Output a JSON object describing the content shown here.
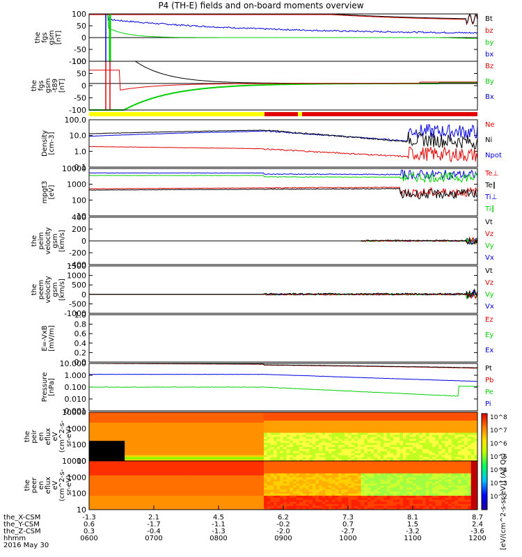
{
  "title": "P4 (TH-E) fields and on-board moments overview",
  "colors": {
    "black": "#000000",
    "red": "#e00000",
    "green": "#00d000",
    "blue": "#0000e0",
    "yellow": "#ffff00"
  },
  "panels": [
    {
      "id": "fgs_gsm",
      "ylabel": "the\nfgs\ngsm\n[nT]",
      "yticks": [
        "100",
        "50",
        "0",
        "-50",
        "-100"
      ],
      "legend": [
        {
          "text": "Bt",
          "color": "#000000"
        },
        {
          "text": "bz",
          "color": "#e00000"
        },
        {
          "text": "by",
          "color": "#00d000"
        },
        {
          "text": "bx",
          "color": "#0000e0"
        }
      ]
    },
    {
      "id": "fgs_gsm_t89",
      "ylabel": "the\nfgs\ngsm\n-t89\n[nT]",
      "yticks": [
        "100",
        "50",
        "0",
        "-50",
        "-100"
      ],
      "legend": [
        {
          "text": "Bz",
          "color": "#e00000"
        },
        {
          "text": "By",
          "color": "#00d000"
        },
        {
          "text": "Bx",
          "color": "#0000e0"
        }
      ]
    },
    {
      "id": "density",
      "ylabel": "Density\n[cm-3]",
      "yticks": [
        "100.0",
        "10.0",
        "1.0",
        "0.1"
      ],
      "legend": [
        {
          "text": "Ne",
          "color": "#e00000"
        },
        {
          "text": "Ni",
          "color": "#000000"
        },
        {
          "text": "Npot",
          "color": "#0000e0"
        }
      ]
    },
    {
      "id": "temp",
      "ylabel": "mpgt3\n[eV]",
      "yticks": [
        "10000",
        "1000",
        "100",
        "10"
      ],
      "legend": [
        {
          "text": "Te⊥",
          "color": "#e00000"
        },
        {
          "text": "Te∥",
          "color": "#000000"
        },
        {
          "text": "Ti⊥",
          "color": "#0000e0"
        },
        {
          "text": "Ti∥",
          "color": "#00d000"
        }
      ]
    },
    {
      "id": "peim_vel",
      "ylabel": "the\npeim\nvelocity\ngsm\n[km/s]",
      "yticks": [
        "400",
        "200",
        "0",
        "-200",
        "-400"
      ],
      "legend": [
        {
          "text": "Vt",
          "color": "#000000"
        },
        {
          "text": "Vz",
          "color": "#e00000"
        },
        {
          "text": "Vy",
          "color": "#00d000"
        },
        {
          "text": "Vx",
          "color": "#0000e0"
        }
      ]
    },
    {
      "id": "peem_vel",
      "ylabel": "the\npeem\nvelocity\ngsm\n[km/s]",
      "yticks": [
        "1500",
        "1000",
        "500",
        "0",
        "-500",
        "-1000"
      ],
      "legend": [
        {
          "text": "Vt",
          "color": "#000000"
        },
        {
          "text": "Vz",
          "color": "#e00000"
        },
        {
          "text": "Vy",
          "color": "#00d000"
        },
        {
          "text": "Vx",
          "color": "#0000e0"
        }
      ]
    },
    {
      "id": "efield",
      "ylabel": "E=-VxB\n[mV/m]",
      "yticks": [
        "1.0",
        "0.8",
        "0.6",
        "0.4",
        "0.2",
        "0.0"
      ],
      "legend": [
        {
          "text": "Ez",
          "color": "#e00000"
        },
        {
          "text": "Ey",
          "color": "#00d000"
        },
        {
          "text": "Ex",
          "color": "#0000e0"
        }
      ]
    },
    {
      "id": "pressure",
      "ylabel": "Pressure\n[nPa]",
      "yticks": [
        "10.000",
        "1.000",
        "0.100",
        "0.010",
        "0.001"
      ],
      "legend": [
        {
          "text": "Pt",
          "color": "#000000"
        },
        {
          "text": "Pb",
          "color": "#e00000"
        },
        {
          "text": "Pe",
          "color": "#00d000"
        },
        {
          "text": "Pi",
          "color": "#0000e0"
        }
      ]
    },
    {
      "id": "peir_eflux",
      "ylabel": "the\npeir\nen\neflux\neV\n(cm^2-s-\nsr-eV)",
      "yticks": [
        "10000",
        "1000",
        "100",
        "10"
      ],
      "legend": []
    },
    {
      "id": "peer_eflux",
      "ylabel": "the\npeer\nen\neflux\neV\n(cm^2-s-\nsr-eV)",
      "yticks": [
        "10000",
        "1000",
        "100",
        "10"
      ],
      "legend": []
    }
  ],
  "colorbar": {
    "ticks": [
      "10^8",
      "10^7",
      "10^6",
      "10^5",
      "10^4",
      "10^3",
      "10^2"
    ],
    "label": "[eV/(cm^2-s-sr-eV)] (All Qs)"
  },
  "ephemeris": {
    "rows": [
      {
        "label": "the_X-CSM",
        "values": [
          "-1.3",
          "2.1",
          "4.5",
          "6.2",
          "7.3",
          "8.1",
          "8.7"
        ]
      },
      {
        "label": "the_Y-CSM",
        "values": [
          "0.6",
          "-1.7",
          "-1.1",
          "-0.2",
          "0.7",
          "1.5",
          "2.4"
        ]
      },
      {
        "label": "the_Z-CSM",
        "values": [
          "0.3",
          "-0.4",
          "-1.3",
          "-2.0",
          "-2.7",
          "-3.2",
          "-3.6"
        ]
      },
      {
        "label": "hhmm",
        "values": [
          "0600",
          "0700",
          "0800",
          "0900",
          "1000",
          "1100",
          "1200"
        ]
      }
    ],
    "date": "2016 May 30"
  },
  "chart_data": [
    {
      "type": "line",
      "title": "the fgs gsm [nT]",
      "x": [
        "0600",
        "0700",
        "0800",
        "0900",
        "1000",
        "1100",
        "1200"
      ],
      "ylim": [
        -100,
        100
      ],
      "series": [
        {
          "name": "Bt",
          "values": [
            null,
            null,
            100,
            95,
            85,
            75,
            80
          ]
        },
        {
          "name": "bz",
          "values": [
            null,
            null,
            100,
            95,
            85,
            75,
            78
          ]
        },
        {
          "name": "by",
          "values": [
            null,
            30,
            5,
            2,
            0,
            -3,
            5
          ]
        },
        {
          "name": "bx",
          "values": [
            null,
            null,
            55,
            35,
            28,
            22,
            20
          ]
        }
      ]
    },
    {
      "type": "line",
      "title": "the fgs gsm -t89 [nT]",
      "x": [
        "0600",
        "0700",
        "0800",
        "0900",
        "1000",
        "1100",
        "1200"
      ],
      "ylim": [
        -120,
        100
      ],
      "series": [
        {
          "name": "Bz",
          "values": [
            null,
            -10,
            0,
            0,
            2,
            4,
            10
          ]
        },
        {
          "name": "By",
          "values": [
            null,
            -60,
            -5,
            0,
            0,
            2,
            5
          ]
        },
        {
          "name": "Bx",
          "values": [
            null,
            60,
            2,
            0,
            0,
            0,
            5
          ]
        }
      ]
    },
    {
      "type": "line",
      "title": "Density [cm-3]",
      "x": [
        "0600",
        "0700",
        "0800",
        "0900",
        "1000",
        "1100",
        "1200"
      ],
      "log": true,
      "ylim": [
        0.1,
        100
      ],
      "series": [
        {
          "name": "Ne",
          "values": [
            2.0,
            1.8,
            1.6,
            1.4,
            0.7,
            0.4,
            1.0
          ]
        },
        {
          "name": "Ni",
          "values": [
            15,
            17,
            20,
            22,
            6,
            2.5,
            5
          ]
        },
        {
          "name": "Npot",
          "values": [
            8,
            10,
            14,
            20,
            10,
            4,
            30
          ]
        }
      ]
    },
    {
      "type": "line",
      "title": "mpgt3 [eV]",
      "x": [
        "0600",
        "0700",
        "0800",
        "0900",
        "1000",
        "1100",
        "1200"
      ],
      "log": true,
      "ylim": [
        10,
        10000
      ],
      "series": [
        {
          "name": "Te⊥",
          "values": [
            500,
            550,
            600,
            600,
            450,
            350,
            100
          ]
        },
        {
          "name": "Te∥",
          "values": [
            400,
            450,
            500,
            500,
            400,
            300,
            100
          ]
        },
        {
          "name": "Ti⊥",
          "values": [
            5000,
            5000,
            5000,
            5000,
            4500,
            4000,
            2000
          ]
        },
        {
          "name": "Ti∥",
          "values": [
            3500,
            3500,
            3500,
            3500,
            3000,
            2800,
            1500
          ]
        }
      ]
    },
    {
      "type": "line",
      "title": "the peim velocity gsm [km/s]",
      "x": [
        "0600",
        "0700",
        "0800",
        "0900",
        "1000",
        "1100",
        "1200"
      ],
      "ylim": [
        -400,
        400
      ],
      "series": [
        {
          "name": "Vt",
          "values": [
            0,
            0,
            0,
            0,
            5,
            10,
            150
          ]
        },
        {
          "name": "Vz",
          "values": [
            0,
            0,
            0,
            0,
            0,
            0,
            -50
          ]
        },
        {
          "name": "Vy",
          "values": [
            0,
            0,
            0,
            0,
            0,
            0,
            -40
          ]
        },
        {
          "name": "Vx",
          "values": [
            0,
            0,
            0,
            0,
            0,
            0,
            -60
          ]
        }
      ]
    },
    {
      "type": "line",
      "title": "the peem velocity gsm [km/s]",
      "x": [
        "0600",
        "0700",
        "0800",
        "0900",
        "1000",
        "1100",
        "1200"
      ],
      "ylim": [
        -1000,
        1500
      ],
      "series": [
        {
          "name": "Vt",
          "values": [
            0,
            0,
            0,
            60,
            80,
            150,
            400
          ]
        },
        {
          "name": "Vz",
          "values": [
            0,
            0,
            0,
            0,
            0,
            0,
            -100
          ]
        },
        {
          "name": "Vy",
          "values": [
            0,
            0,
            0,
            0,
            0,
            0,
            -100
          ]
        },
        {
          "name": "Vx",
          "values": [
            0,
            0,
            0,
            0,
            0,
            0,
            -300
          ]
        }
      ]
    },
    {
      "type": "line",
      "title": "E=-VxB [mV/m]",
      "x": [
        "0600",
        "0700",
        "0800",
        "0900",
        "1000",
        "1100",
        "1200"
      ],
      "ylim": [
        0,
        1
      ],
      "series": []
    },
    {
      "type": "line",
      "title": "Pressure [nPa]",
      "x": [
        "0600",
        "0700",
        "0800",
        "0900",
        "1000",
        "1100",
        "1200"
      ],
      "log": true,
      "ylim": [
        0.001,
        10
      ],
      "series": [
        {
          "name": "Pt",
          "values": [
            10,
            10,
            10,
            9,
            6,
            4,
            5
          ]
        },
        {
          "name": "Pb",
          "values": [
            10,
            10,
            10,
            9,
            6,
            4,
            5
          ]
        },
        {
          "name": "Pe",
          "values": [
            0.1,
            0.1,
            0.1,
            0.09,
            0.04,
            0.02,
            0.1
          ]
        },
        {
          "name": "Pi",
          "values": [
            1.2,
            1.2,
            1.2,
            1.1,
            0.6,
            0.4,
            1.0
          ]
        }
      ]
    },
    {
      "type": "heatmap",
      "title": "the peir en eflux",
      "x": [
        "0600",
        "0700",
        "0800",
        "0900",
        "1000",
        "1100",
        "1200"
      ]
    },
    {
      "type": "heatmap",
      "title": "the peer en eflux",
      "x": [
        "0600",
        "0700",
        "0800",
        "0900",
        "1000",
        "1100",
        "1200"
      ]
    }
  ]
}
